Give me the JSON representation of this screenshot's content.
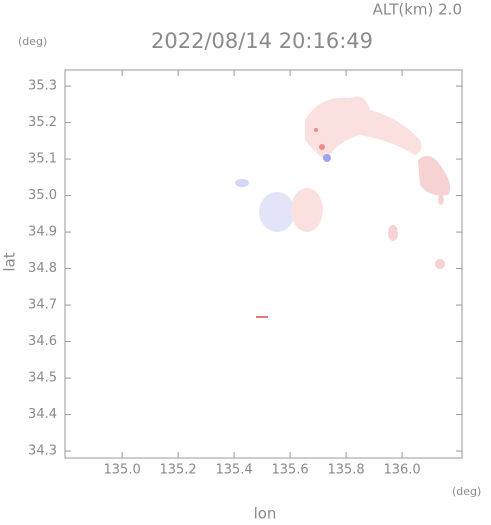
{
  "chart_data": {
    "type": "map",
    "title": "2022/08/14 20:16:49",
    "subtitle": "ALT(km) 2.0",
    "x_label": "lon",
    "y_label": "lat",
    "x_unit": "(deg)",
    "y_unit": "(deg)",
    "xlim": [
      134.796,
      136.214
    ],
    "ylim": [
      34.281,
      35.344
    ],
    "xticks": [
      {
        "value": 135,
        "label": "135.0"
      },
      135.2,
      135.4,
      135.6,
      135.8,
      {
        "value": 136,
        "label": "136.0"
      }
    ],
    "yticks": [
      34.3,
      34.4,
      34.5,
      34.6,
      34.7,
      34.8,
      34.9,
      {
        "value": 35,
        "label": "35.0"
      },
      35.1,
      35.2,
      35.3
    ]
  }
}
